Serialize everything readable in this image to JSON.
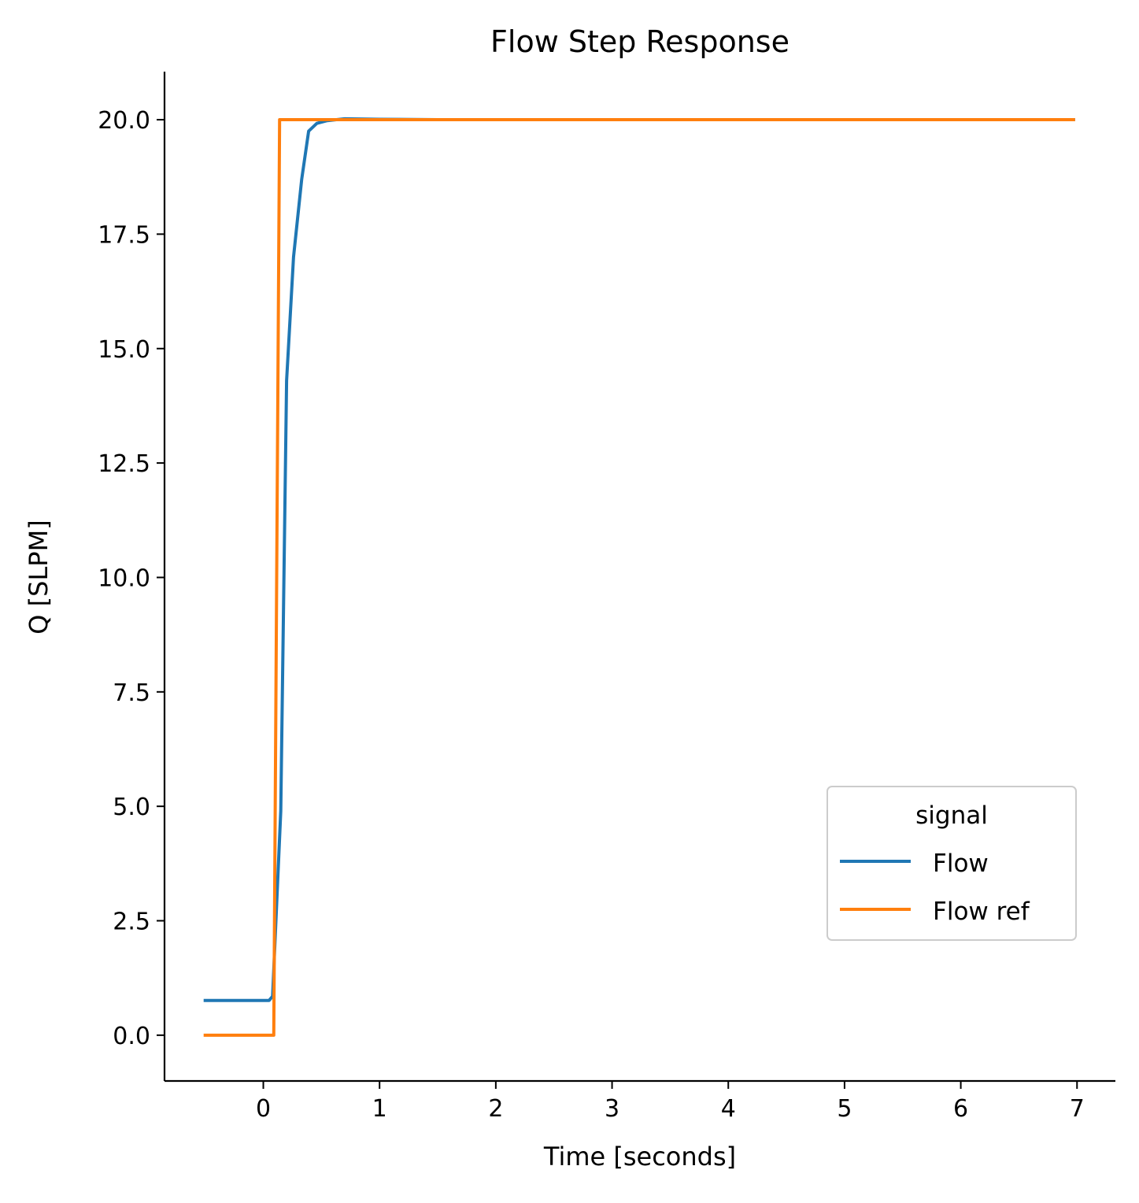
{
  "chart_data": {
    "type": "line",
    "title": "Flow Step Response",
    "xlabel": "Time [seconds]",
    "ylabel": "Q [SLPM]",
    "xlim": [
      -0.85,
      7.33
    ],
    "ylim": [
      -1.0,
      21.05
    ],
    "xticks": [
      0,
      1,
      2,
      3,
      4,
      5,
      6,
      7
    ],
    "xtick_labels": [
      "0",
      "1",
      "2",
      "3",
      "4",
      "5",
      "6",
      "7"
    ],
    "yticks": [
      0,
      2.5,
      5,
      7.5,
      10,
      12.5,
      15,
      17.5,
      20
    ],
    "ytick_labels": [
      "0.0",
      "2.5",
      "5.0",
      "7.5",
      "10.0",
      "12.5",
      "15.0",
      "17.5",
      "20.0"
    ],
    "grid": false,
    "legend": {
      "title": "signal",
      "placement": "lower-right"
    },
    "series": [
      {
        "name": "Flow",
        "color": "#1f77b4",
        "x": [
          -0.5,
          0.05,
          0.08,
          0.15,
          0.2,
          0.26,
          0.33,
          0.39,
          0.46,
          0.55,
          0.7,
          1.0,
          1.5,
          3.0,
          5.0,
          6.97
        ],
        "y": [
          0.76,
          0.76,
          0.85,
          4.9,
          14.3,
          17.0,
          18.7,
          19.75,
          19.92,
          19.98,
          20.02,
          20.01,
          20.0,
          20.0,
          20.0,
          20.0
        ]
      },
      {
        "name": "Flow ref",
        "color": "#ff7f0e",
        "x": [
          -0.5,
          0.09,
          0.14,
          6.97
        ],
        "y": [
          0.0,
          0.0,
          20.0,
          20.0
        ]
      }
    ]
  }
}
